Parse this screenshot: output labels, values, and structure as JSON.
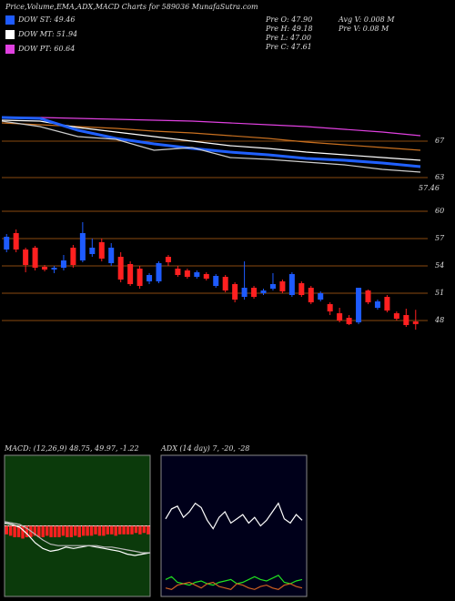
{
  "header": {
    "title": "Price,Volume,EMA,ADX,MACD Charts for 589036 MunafaSutra.com"
  },
  "legend": [
    {
      "label": "DOW ST: 49.46",
      "color": "#1e5bff"
    },
    {
      "label": "DOW MT: 51.94",
      "color": "#ffffff"
    },
    {
      "label": "DOW PT: 60.64",
      "color": "#e040e0"
    }
  ],
  "stats": [
    "Pre O: 47.90",
    "Pre H: 49.18",
    "Pre L: 47.00",
    "Pre C: 47.61",
    "Avg V: 0.008 M",
    "Pre V: 0.08 M"
  ],
  "chart_data": [
    {
      "type": "line",
      "annotation": "57.46",
      "ylim": [
        62.5,
        71
      ],
      "yticks": [
        63,
        67
      ],
      "grid": true,
      "grid_color": "#8a4a10",
      "categories": [
        null,
        null,
        null,
        null,
        null,
        null,
        null,
        null,
        null,
        null,
        null,
        null
      ],
      "series": [
        {
          "color": "#e040e0",
          "values": [
            69.6,
            69.6,
            69.5,
            69.4,
            69.3,
            69.2,
            69.0,
            68.8,
            68.6,
            68.3,
            68.0,
            67.6
          ]
        },
        {
          "color": "#c87020",
          "values": [
            69.0,
            68.8,
            68.6,
            68.4,
            68.1,
            67.9,
            67.6,
            67.3,
            66.9,
            66.6,
            66.3,
            66.0
          ]
        },
        {
          "color": "#ffffff",
          "values": [
            69.3,
            69.2,
            68.5,
            68.0,
            67.5,
            67.0,
            66.5,
            66.2,
            65.8,
            65.5,
            65.2,
            64.9
          ]
        },
        {
          "color": "#2060ff",
          "values": [
            69.6,
            69.5,
            68.2,
            67.3,
            66.7,
            66.2,
            65.8,
            65.5,
            65.1,
            64.9,
            64.6,
            64.2
          ]
        },
        {
          "color": "#cccccc",
          "values": [
            69.2,
            68.6,
            67.5,
            67.2,
            66.0,
            66.3,
            65.2,
            65.0,
            64.7,
            64.4,
            63.9,
            63.6
          ]
        }
      ]
    },
    {
      "type": "candlestick",
      "ylim": [
        46,
        62.5
      ],
      "yticks": [
        48,
        51,
        54,
        57,
        60
      ],
      "grid": true,
      "grid_color": "#8a4a10",
      "up_color": "#1e5bff",
      "down_color": "#ff2020",
      "categories": [
        null,
        null,
        null,
        null,
        null,
        null,
        null,
        null,
        null,
        null,
        null,
        null,
        null,
        null,
        null,
        null,
        null,
        null,
        null,
        null,
        null,
        null,
        null,
        null,
        null,
        null,
        null,
        null,
        null,
        null,
        null,
        null,
        null,
        null,
        null,
        null,
        null,
        null,
        null,
        null,
        null,
        null,
        null,
        null
      ],
      "open": [
        55.8,
        57.6,
        55.8,
        56.0,
        53.9,
        53.6,
        53.8,
        56.0,
        54.6,
        55.3,
        56.6,
        54.3,
        55.0,
        54.2,
        53.7,
        52.3,
        52.3,
        55.0,
        53.7,
        53.5,
        52.8,
        53.1,
        51.8,
        52.8,
        52.0,
        50.6,
        51.6,
        51.0,
        51.5,
        52.3,
        50.8,
        52.1,
        51.6,
        50.3,
        49.8,
        48.8,
        48.3,
        47.8,
        51.3,
        49.4,
        50.6,
        48.8,
        48.6,
        47.9
      ],
      "high": [
        57.5,
        58.0,
        56.0,
        56.2,
        54.1,
        54.0,
        55.2,
        56.3,
        58.8,
        57.0,
        57.0,
        56.5,
        55.5,
        54.5,
        54.0,
        53.2,
        54.5,
        55.2,
        54.0,
        53.7,
        53.5,
        53.3,
        53.1,
        53.0,
        52.2,
        54.5,
        51.8,
        51.5,
        53.2,
        52.5,
        53.3,
        52.3,
        51.8,
        51.2,
        50.0,
        49.4,
        48.6,
        51.6,
        51.4,
        50.3,
        50.8,
        49.0,
        49.3,
        49.18
      ],
      "low": [
        55.5,
        55.5,
        53.3,
        53.5,
        53.4,
        53.2,
        53.5,
        53.8,
        54.4,
        55.0,
        54.5,
        54.0,
        52.2,
        51.8,
        51.5,
        52.0,
        52.1,
        54.0,
        52.8,
        52.6,
        52.6,
        52.4,
        51.6,
        51.1,
        50.0,
        50.3,
        50.4,
        50.8,
        51.3,
        51.0,
        50.6,
        50.6,
        49.8,
        50.1,
        48.6,
        47.8,
        47.5,
        47.6,
        49.8,
        49.2,
        48.9,
        48.0,
        47.3,
        47.0
      ],
      "close": [
        57.2,
        55.8,
        54.1,
        53.8,
        53.6,
        53.8,
        54.6,
        54.1,
        57.6,
        56.0,
        54.8,
        56.0,
        52.5,
        52.0,
        51.8,
        53.0,
        54.3,
        54.4,
        53.0,
        52.8,
        53.3,
        52.6,
        52.9,
        51.3,
        50.3,
        51.6,
        50.6,
        51.3,
        52.0,
        51.2,
        53.1,
        50.8,
        50.0,
        51.0,
        49.0,
        48.0,
        47.6,
        51.6,
        50.0,
        50.1,
        49.1,
        48.2,
        47.5,
        47.61
      ]
    },
    {
      "type": "macd",
      "title": "MACD: (12,26,9) 48.75, 49.97, -1.22",
      "ylim": [
        -5,
        5
      ],
      "background": "#0b3a0b",
      "bar_color": "#ff2020",
      "histogram": [
        -0.6,
        -0.7,
        -0.8,
        -0.8,
        -0.9,
        -0.8,
        -0.8,
        -0.7,
        -0.8,
        -0.8,
        -0.7,
        -0.8,
        -0.8,
        -0.8,
        -0.7,
        -0.8,
        -0.8,
        -0.7,
        -0.8,
        -0.7,
        -0.7,
        -0.7,
        -0.6,
        -0.7,
        -0.7,
        -0.6,
        -0.6,
        -0.7,
        -0.6,
        -0.6,
        -0.6,
        -0.6,
        -0.5,
        -0.6,
        -0.5,
        -0.6
      ],
      "series": [
        {
          "color": "#ffffff",
          "values": [
            0.2,
            0.1,
            -0.1,
            -0.6,
            -1.2,
            -1.6,
            -1.8,
            -1.7,
            -1.5,
            -1.6,
            -1.5,
            -1.4,
            -1.5,
            -1.6,
            -1.7,
            -1.8,
            -2.0,
            -2.1,
            -2.0,
            -1.9
          ]
        },
        {
          "color": "#bbbbbb",
          "values": [
            0.3,
            0.2,
            0.1,
            -0.2,
            -0.6,
            -1.0,
            -1.3,
            -1.4,
            -1.4,
            -1.4,
            -1.4,
            -1.4,
            -1.4,
            -1.5,
            -1.5,
            -1.6,
            -1.7,
            -1.8,
            -1.9,
            -1.9
          ]
        }
      ]
    },
    {
      "type": "adx",
      "title": "ADX (14 day) 7, -20, -28",
      "ylim": [
        0,
        100
      ],
      "background": "#00001a",
      "series": [
        {
          "color": "#ffffff",
          "values": [
            55,
            62,
            64,
            56,
            60,
            66,
            63,
            54,
            48,
            56,
            60,
            52,
            55,
            58,
            52,
            56,
            50,
            54,
            60,
            66,
            55,
            52,
            58,
            54
          ]
        },
        {
          "color": "#20e020",
          "values": [
            12,
            14,
            10,
            9,
            8,
            10,
            11,
            9,
            8,
            10,
            11,
            12,
            9,
            10,
            12,
            14,
            12,
            11,
            13,
            15,
            10,
            9,
            11,
            12
          ]
        },
        {
          "color": "#d06020",
          "values": [
            6,
            5,
            8,
            9,
            10,
            8,
            6,
            9,
            10,
            7,
            6,
            5,
            9,
            8,
            6,
            5,
            7,
            8,
            6,
            5,
            8,
            9,
            7,
            6
          ]
        }
      ]
    }
  ]
}
